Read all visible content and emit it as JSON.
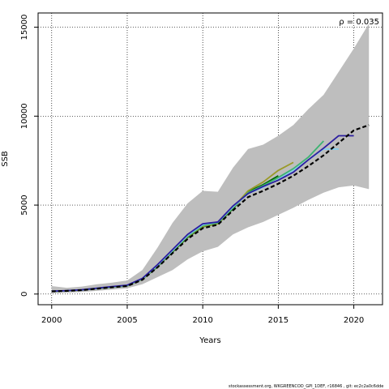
{
  "chart_data": {
    "type": "line",
    "xlabel": "Years",
    "ylabel": "SSB",
    "xlim": [
      1999.1,
      2021.9
    ],
    "ylim": [
      -600,
      15800
    ],
    "x_ticks": [
      2000,
      2005,
      2010,
      2015,
      2020
    ],
    "y_ticks": [
      0,
      5000,
      10000,
      15000
    ],
    "grid": true,
    "annotation": "ρ = 0.035",
    "band": {
      "color": "#bebebe",
      "x": [
        2000,
        2001,
        2002,
        2003,
        2004,
        2005,
        2006,
        2007,
        2008,
        2009,
        2010,
        2011,
        2012,
        2013,
        2014,
        2015,
        2016,
        2017,
        2018,
        2019,
        2020,
        2021
      ],
      "upper": [
        450,
        350,
        420,
        550,
        640,
        760,
        1350,
        2600,
        4000,
        5100,
        5800,
        5750,
        7100,
        8150,
        8400,
        8900,
        9500,
        10400,
        11200,
        12500,
        13800,
        15200
      ],
      "lower": [
        50,
        80,
        120,
        180,
        250,
        320,
        550,
        950,
        1350,
        1950,
        2400,
        2650,
        3350,
        3750,
        4050,
        4450,
        4850,
        5300,
        5700,
        6000,
        6100,
        5900
      ]
    },
    "series": [
      {
        "color": "#000000",
        "dashed": true,
        "x": [
          2000,
          2001,
          2002,
          2003,
          2004,
          2005,
          2006,
          2007,
          2008,
          2009,
          2010,
          2011,
          2012,
          2013,
          2014,
          2015,
          2016,
          2017,
          2018,
          2019,
          2020,
          2021
        ],
        "values": [
          150,
          180,
          220,
          300,
          380,
          450,
          800,
          1500,
          2300,
          3100,
          3700,
          3900,
          4700,
          5450,
          5800,
          6200,
          6650,
          7200,
          7800,
          8500,
          9200,
          9500
        ]
      },
      {
        "color": "#2c1ea0",
        "x": [
          2000,
          2001,
          2002,
          2003,
          2004,
          2005,
          2006,
          2007,
          2008,
          2009,
          2010,
          2011,
          2012,
          2013,
          2014,
          2015,
          2016,
          2017,
          2018,
          2019,
          2020
        ],
        "values": [
          160,
          190,
          240,
          330,
          420,
          500,
          880,
          1650,
          2500,
          3350,
          3950,
          4050,
          4950,
          5650,
          6050,
          6400,
          6850,
          7550,
          8200,
          8900,
          8900
        ]
      },
      {
        "color": "#87ceeb",
        "x": [
          2000,
          2001,
          2002,
          2003,
          2004,
          2005,
          2006,
          2007,
          2008,
          2009,
          2010,
          2011,
          2012,
          2013,
          2014,
          2015,
          2016,
          2017,
          2018,
          2019
        ],
        "values": [
          155,
          185,
          235,
          320,
          410,
          490,
          860,
          1600,
          2450,
          3300,
          3900,
          4050,
          4900,
          5650,
          6000,
          6450,
          6950,
          7550,
          8150,
          8150
        ]
      },
      {
        "color": "#3cb371",
        "x": [
          2000,
          2001,
          2002,
          2003,
          2004,
          2005,
          2006,
          2007,
          2008,
          2009,
          2010,
          2011,
          2012,
          2013,
          2014,
          2015,
          2016,
          2017,
          2018
        ],
        "values": [
          150,
          180,
          230,
          320,
          400,
          480,
          850,
          1580,
          2420,
          3250,
          3850,
          4000,
          4850,
          5700,
          6100,
          6550,
          7050,
          7700,
          8600
        ]
      },
      {
        "color": "#9a9a28",
        "x": [
          2000,
          2001,
          2002,
          2003,
          2004,
          2005,
          2006,
          2007,
          2008,
          2009,
          2010,
          2011,
          2012,
          2013,
          2014,
          2015,
          2016
        ],
        "values": [
          150,
          180,
          230,
          310,
          390,
          470,
          840,
          1570,
          2400,
          3220,
          3800,
          3950,
          4850,
          5800,
          6300,
          6950,
          7400
        ]
      },
      {
        "color": "#006400",
        "x": [
          2000,
          2001,
          2002,
          2003,
          2004,
          2005,
          2006,
          2007,
          2008,
          2009,
          2010,
          2011,
          2012,
          2013,
          2014,
          2015
        ],
        "values": [
          150,
          180,
          225,
          305,
          385,
          460,
          830,
          1540,
          2370,
          3180,
          3780,
          3950,
          4800,
          5750,
          6150,
          6650
        ]
      }
    ]
  },
  "footnote": "stockassessment.org, WKGREENCOD_GPI_1DEF, r16846 , git: ec2c2a0c6dde"
}
